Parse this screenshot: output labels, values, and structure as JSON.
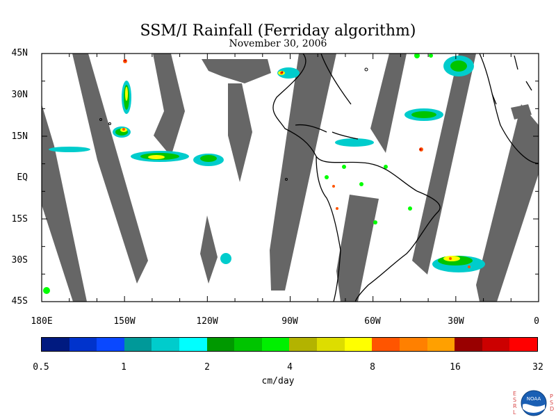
{
  "title": "SSM/I Rainfall (Ferriday algorithm)",
  "subtitle": "November 30, 2006",
  "lat_labels": [
    "45N",
    "30N",
    "15N",
    "EQ",
    "15S",
    "30S",
    "45S"
  ],
  "lon_labels": [
    "180E",
    "150W",
    "120W",
    "90W",
    "60W",
    "30W",
    "0"
  ],
  "colorbar": {
    "colors": [
      "#001a80",
      "#0033cc",
      "#0a48ff",
      "#009999",
      "#00cccc",
      "#00ffff",
      "#009900",
      "#00c400",
      "#00f000",
      "#b3b300",
      "#dddd00",
      "#ffff00",
      "#ff5500",
      "#ff8000",
      "#ffa000",
      "#990000",
      "#cc0000",
      "#ff0000"
    ],
    "tick_labels": [
      "0.5",
      "1",
      "2",
      "4",
      "8",
      "16",
      "32"
    ],
    "units": "cm/day"
  },
  "logo": {
    "left_letters": [
      "E",
      "S",
      "R",
      "L"
    ],
    "right_letters": [
      "P",
      "S",
      "D"
    ],
    "emblem_text": "NOAA"
  }
}
